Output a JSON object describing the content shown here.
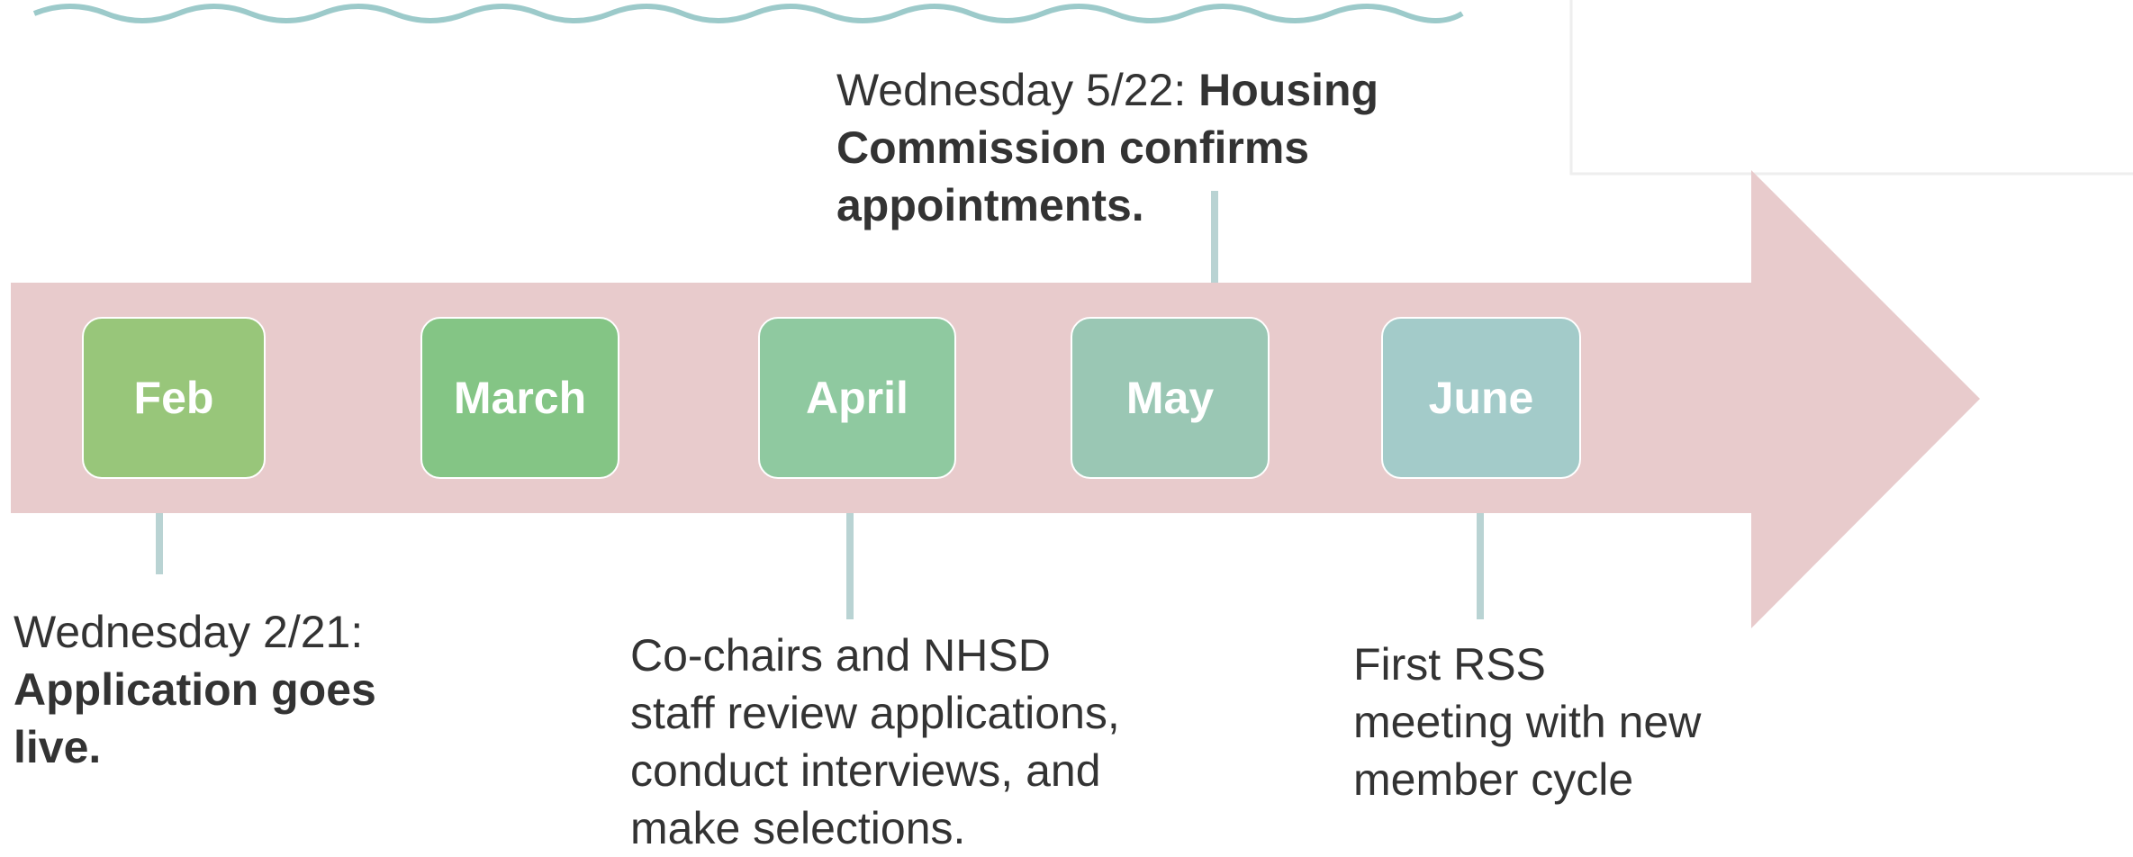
{
  "months": [
    "Feb",
    "March",
    "April",
    "May",
    "June"
  ],
  "events": [
    {
      "lines": [
        [
          {
            "text": "Wednesday 2/21:",
            "bold": false
          }
        ],
        [
          {
            "text": "Application goes",
            "bold": true
          }
        ],
        [
          {
            "text": "live.",
            "bold": true
          }
        ]
      ]
    },
    {
      "lines": [
        [
          {
            "text": "Co-chairs and NHSD",
            "bold": false
          }
        ],
        [
          {
            "text": "staff review applications,",
            "bold": false
          }
        ],
        [
          {
            "text": "conduct interviews, and",
            "bold": false
          }
        ],
        [
          {
            "text": "make selections.",
            "bold": false
          }
        ]
      ]
    },
    {
      "lines": [
        [
          {
            "text": "Wednesday 5/22: ",
            "bold": false
          },
          {
            "text": "Housing",
            "bold": true
          }
        ],
        [
          {
            "text": "Commission confirms",
            "bold": true
          }
        ],
        [
          {
            "text": "appointments.",
            "bold": true
          }
        ]
      ]
    },
    {
      "lines": [
        [
          {
            "text": "First RSS",
            "bold": false
          }
        ],
        [
          {
            "text": "meeting with new",
            "bold": false
          }
        ],
        [
          {
            "text": "member cycle",
            "bold": false
          }
        ]
      ]
    }
  ]
}
